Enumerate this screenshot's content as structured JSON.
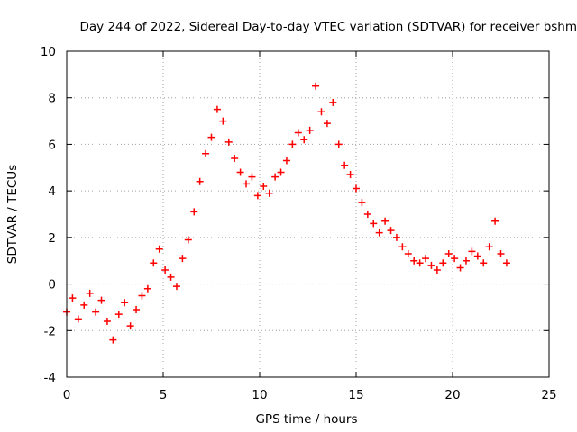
{
  "chart_data": {
    "type": "scatter",
    "title": "Day 244 of 2022, Sidereal Day-to-day VTEC variation (SDTVAR) for receiver bshm",
    "xlabel": "GPS time / hours",
    "ylabel": "SDTVAR / TECUs",
    "xlim": [
      0,
      25
    ],
    "ylim": [
      -4,
      10
    ],
    "x_ticks": [
      0,
      5,
      10,
      15,
      20,
      25
    ],
    "y_ticks": [
      -4,
      -2,
      0,
      2,
      4,
      6,
      8,
      10
    ],
    "x_tick_labels": [
      "0",
      "5",
      "10",
      "15",
      "20",
      "25"
    ],
    "y_tick_labels": [
      "-4",
      "-2",
      "0",
      "2",
      "4",
      "6",
      "8",
      "10"
    ],
    "grid": true,
    "marker": "+",
    "series": [
      {
        "name": "SDTVAR",
        "color": "#ff0000",
        "x": [
          0.0,
          0.3,
          0.6,
          0.9,
          1.2,
          1.5,
          1.8,
          2.1,
          2.4,
          2.7,
          3.0,
          3.3,
          3.6,
          3.9,
          4.2,
          4.5,
          4.8,
          5.1,
          5.4,
          5.7,
          6.0,
          6.3,
          6.6,
          6.9,
          7.2,
          7.5,
          7.8,
          8.1,
          8.4,
          8.7,
          9.0,
          9.3,
          9.6,
          9.9,
          10.2,
          10.5,
          10.8,
          11.1,
          11.4,
          11.7,
          12.0,
          12.3,
          12.6,
          12.9,
          13.2,
          13.5,
          13.8,
          14.1,
          14.4,
          14.7,
          15.0,
          15.3,
          15.6,
          15.9,
          16.2,
          16.5,
          16.8,
          17.1,
          17.4,
          17.7,
          18.0,
          18.3,
          18.6,
          18.9,
          19.2,
          19.5,
          19.8,
          20.1,
          20.4,
          20.7,
          21.0,
          21.3,
          21.6,
          21.9,
          22.2,
          22.5,
          22.8
        ],
        "y": [
          -1.2,
          -0.6,
          -1.5,
          -0.9,
          -0.4,
          -1.2,
          -0.7,
          -1.6,
          -2.4,
          -1.3,
          -0.8,
          -1.8,
          -1.1,
          -0.5,
          -0.2,
          0.9,
          1.5,
          0.6,
          0.3,
          -0.1,
          1.1,
          1.9,
          3.1,
          4.4,
          5.6,
          6.3,
          7.5,
          7.0,
          6.1,
          5.4,
          4.8,
          4.3,
          4.6,
          3.8,
          4.2,
          3.9,
          4.6,
          4.8,
          5.3,
          6.0,
          6.5,
          6.2,
          6.6,
          8.5,
          7.4,
          6.9,
          7.8,
          6.0,
          5.1,
          4.7,
          4.1,
          3.5,
          3.0,
          2.6,
          2.2,
          2.7,
          2.3,
          2.0,
          1.6,
          1.3,
          1.0,
          0.9,
          1.1,
          0.8,
          0.6,
          0.9,
          1.3,
          1.1,
          0.7,
          1.0,
          1.4,
          1.2,
          0.9,
          1.6,
          2.7,
          1.3,
          0.9
        ]
      }
    ]
  }
}
